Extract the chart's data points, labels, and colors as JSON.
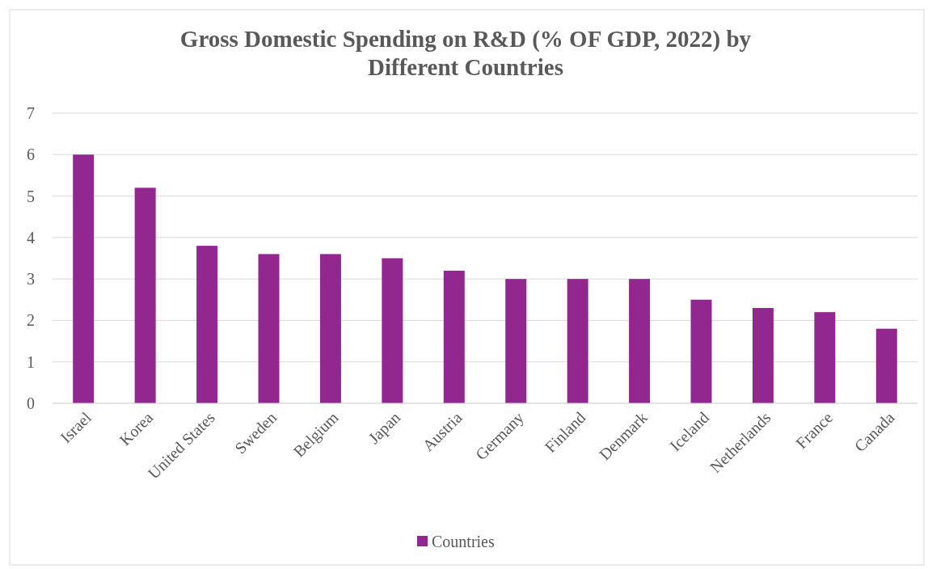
{
  "chart_data": {
    "type": "bar",
    "title": "Gross Domestic Spending on R&D (% OF GDP, 2022) by Different Countries",
    "categories": [
      "Israel",
      "Korea",
      "United States",
      "Sweden",
      "Belgium",
      "Japan",
      "Austria",
      "Germany",
      "Finland",
      "Denmark",
      "Iceland",
      "Netherlands",
      "France",
      "Canada"
    ],
    "series": [
      {
        "name": "Countries",
        "color": "#92278f",
        "values": [
          6.0,
          5.2,
          3.8,
          3.6,
          3.6,
          3.5,
          3.2,
          3.0,
          3.0,
          3.0,
          2.5,
          2.3,
          2.2,
          1.8
        ]
      }
    ],
    "ylim": [
      0,
      7
    ],
    "yticks": [
      0,
      1,
      2,
      3,
      4,
      5,
      6,
      7
    ],
    "grid": "y",
    "legend": "bottom"
  }
}
